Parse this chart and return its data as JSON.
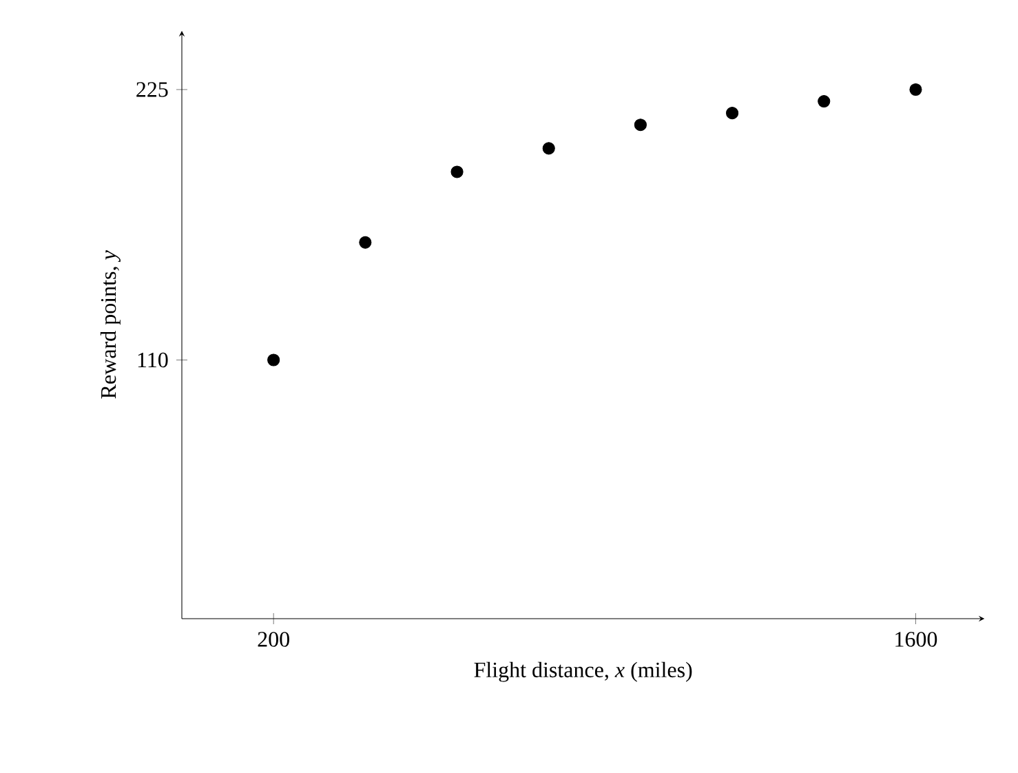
{
  "chart_data": {
    "type": "scatter",
    "xlabel": "Flight distance, *x* (miles)",
    "ylabel": "Reward points, *y*",
    "x": [
      200,
      400,
      600,
      800,
      1000,
      1200,
      1400,
      1600
    ],
    "values": [
      110,
      160,
      190,
      200,
      210,
      215,
      220,
      225
    ],
    "color": "#000000",
    "marker": "circle",
    "xlim": [
      0,
      1750
    ],
    "ylim": [
      0,
      250
    ],
    "xticks": [
      200,
      1600
    ],
    "yticks": [
      110,
      225
    ]
  }
}
